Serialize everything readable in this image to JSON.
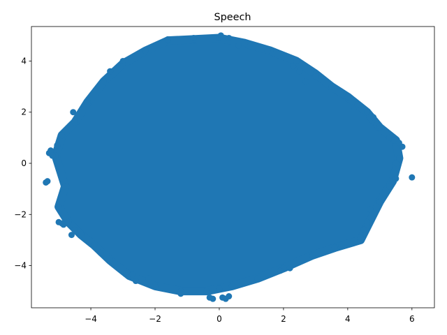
{
  "chart_data": {
    "type": "scatter",
    "title": "Speech",
    "xlabel": "",
    "ylabel": "",
    "xlim": [
      -5.85,
      6.7
    ],
    "ylim": [
      -5.65,
      5.35
    ],
    "xticks": [
      -4,
      -2,
      0,
      2,
      4,
      6
    ],
    "yticks": [
      -4,
      -2,
      0,
      2,
      4
    ],
    "grid": false,
    "legend": "none",
    "color": "#1f77b4",
    "series": [
      {
        "cluster_outline": [
          [
            -5.0,
            -1.7
          ],
          [
            -4.8,
            -0.9
          ],
          [
            -5.1,
            0.3
          ],
          [
            -4.9,
            1.1
          ],
          [
            -4.5,
            1.6
          ],
          [
            -4.1,
            2.4
          ],
          [
            -3.6,
            3.2
          ],
          [
            -3.0,
            3.9
          ],
          [
            -2.3,
            4.4
          ],
          [
            -1.6,
            4.8
          ],
          [
            -0.8,
            4.85
          ],
          [
            0.0,
            4.9
          ],
          [
            0.8,
            4.7
          ],
          [
            1.6,
            4.4
          ],
          [
            2.4,
            4.0
          ],
          [
            3.0,
            3.5
          ],
          [
            3.5,
            3.0
          ],
          [
            4.0,
            2.6
          ],
          [
            4.6,
            2.0
          ],
          [
            5.0,
            1.4
          ],
          [
            5.5,
            0.9
          ],
          [
            5.6,
            0.2
          ],
          [
            5.4,
            -0.7
          ],
          [
            5.0,
            -1.5
          ],
          [
            4.6,
            -2.5
          ],
          [
            4.4,
            -3.0
          ],
          [
            3.6,
            -3.3
          ],
          [
            2.9,
            -3.6
          ],
          [
            2.0,
            -4.1
          ],
          [
            1.2,
            -4.5
          ],
          [
            0.4,
            -4.8
          ],
          [
            -0.4,
            -5.0
          ],
          [
            -1.2,
            -5.0
          ],
          [
            -2.0,
            -4.8
          ],
          [
            -2.8,
            -4.4
          ],
          [
            -3.4,
            -3.8
          ],
          [
            -3.9,
            -3.2
          ],
          [
            -4.3,
            -2.8
          ],
          [
            -4.7,
            -2.3
          ]
        ],
        "points": [
          [
            -5.4,
            -0.75
          ],
          [
            -5.35,
            -0.7
          ],
          [
            -5.3,
            0.4
          ],
          [
            -5.25,
            0.5
          ],
          [
            -5.2,
            0.3
          ],
          [
            -5.05,
            0.7
          ],
          [
            -5.0,
            -2.3
          ],
          [
            -4.9,
            -2.35
          ],
          [
            -4.85,
            -2.4
          ],
          [
            -4.6,
            -2.8
          ],
          [
            -4.5,
            -2.6
          ],
          [
            -4.55,
            2.0
          ],
          [
            -3.7,
            -3.5
          ],
          [
            -3.5,
            -3.7
          ],
          [
            -3.4,
            3.6
          ],
          [
            -3.0,
            4.0
          ],
          [
            -2.9,
            -4.3
          ],
          [
            -2.7,
            -4.35
          ],
          [
            -2.6,
            -4.6
          ],
          [
            -2.2,
            -4.5
          ],
          [
            -1.6,
            4.85
          ],
          [
            -1.2,
            -5.1
          ],
          [
            -0.8,
            4.9
          ],
          [
            -0.3,
            -5.25
          ],
          [
            -0.2,
            -5.3
          ],
          [
            0.0,
            -4.9
          ],
          [
            0.1,
            -5.25
          ],
          [
            0.2,
            -5.3
          ],
          [
            0.3,
            -5.2
          ],
          [
            0.05,
            5.0
          ],
          [
            0.3,
            4.9
          ],
          [
            0.6,
            4.6
          ],
          [
            1.5,
            4.4
          ],
          [
            1.9,
            -4.2
          ],
          [
            2.2,
            -4.1
          ],
          [
            2.3,
            3.8
          ],
          [
            2.5,
            3.6
          ],
          [
            2.7,
            3.2
          ],
          [
            3.0,
            3.4
          ],
          [
            3.6,
            -3.3
          ],
          [
            3.8,
            -3.2
          ],
          [
            4.2,
            2.2
          ],
          [
            4.4,
            -2.9
          ],
          [
            4.5,
            -2.6
          ],
          [
            4.3,
            2.3
          ],
          [
            4.8,
            1.8
          ],
          [
            4.9,
            1.5
          ],
          [
            5.0,
            1.45
          ],
          [
            5.3,
            1.0
          ],
          [
            5.45,
            0.9
          ],
          [
            5.6,
            0.8
          ],
          [
            5.7,
            0.65
          ],
          [
            5.5,
            0.0
          ],
          [
            5.5,
            -0.6
          ],
          [
            5.3,
            -0.9
          ],
          [
            5.0,
            -1.5
          ],
          [
            4.7,
            -1.8
          ],
          [
            4.6,
            -2.3
          ],
          [
            6.0,
            -0.55
          ]
        ]
      }
    ]
  }
}
